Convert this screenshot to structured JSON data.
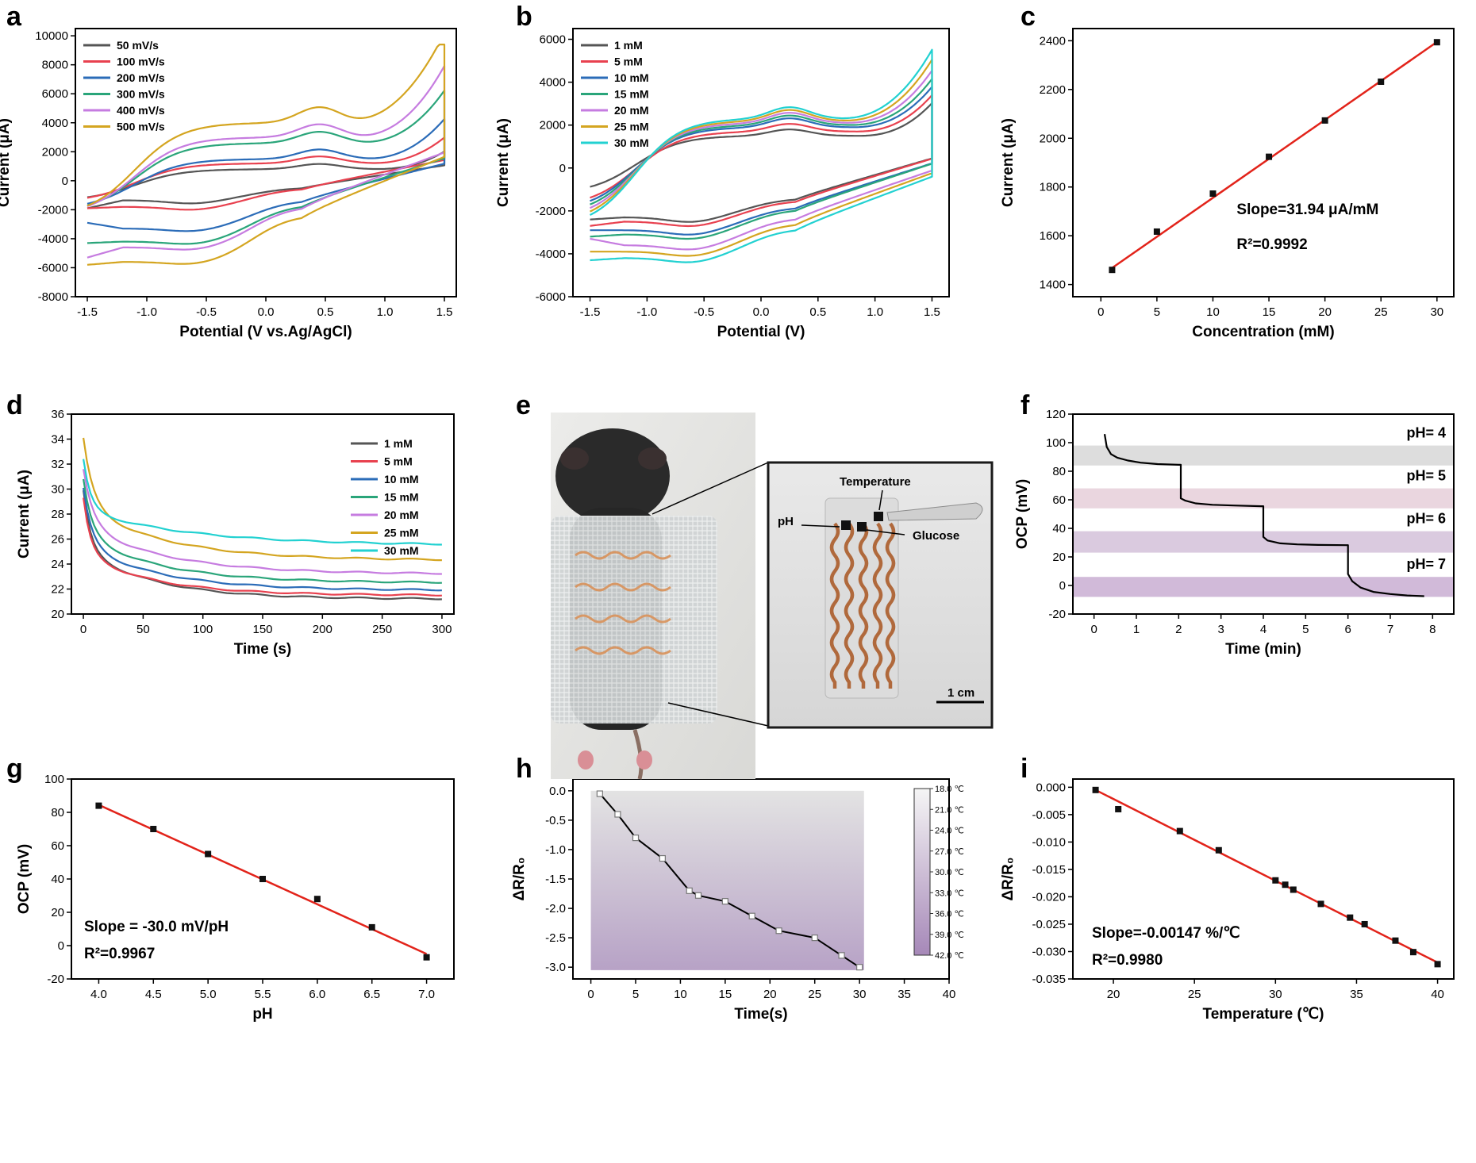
{
  "panel_labels": [
    "a",
    "b",
    "c",
    "d",
    "e",
    "f",
    "g",
    "h",
    "i"
  ],
  "photo": {
    "annotations": {
      "temperature": "Temperature",
      "ph": "pH",
      "glucose": "Glucose",
      "scale": "1 cm"
    }
  },
  "chart_data": [
    {
      "panel": "a",
      "type": "line",
      "xlabel": "Potential (V vs.Ag/AgCl)",
      "ylabel": "Current (μA)",
      "xlim": [
        -1.6,
        1.6
      ],
      "ylim": [
        -8000,
        10500
      ],
      "xticks": [
        -1.5,
        -1.0,
        -0.5,
        0.0,
        0.5,
        1.0,
        1.5
      ],
      "xtick_labels": [
        "-1.5",
        "-1.0",
        "-0.5",
        "0.0",
        "0.5",
        "1.0",
        "1.5"
      ],
      "yticks": [
        -8000,
        -6000,
        -4000,
        -2000,
        0,
        2000,
        4000,
        6000,
        8000,
        10000
      ],
      "ytick_labels": [
        "-8000",
        "-6000",
        "-4000",
        "-2000",
        "0",
        "2000",
        "4000",
        "6000",
        "8000",
        "10000"
      ],
      "legend_position": "top-left",
      "curve_model": "cv_a",
      "series": [
        {
          "name": "50 mV/s",
          "color": "#555555",
          "cv": {
            "oxStart": -1400,
            "oxA": 600,
            "oxPlat": 800,
            "oxEnd": 3600,
            "redMin": -1350,
            "redEnd": -1900,
            "redPeak": -1200,
            "redStep": 900,
            "x0": 1.25,
            "k": 4.5
          }
        },
        {
          "name": "100 mV/s",
          "color": "#e8414f",
          "cv": {
            "oxStart": -1500,
            "oxA": 800,
            "oxPlat": 1200,
            "oxEnd": 4600,
            "redMin": -1800,
            "redEnd": -1900,
            "redPeak": -1700,
            "redStep": 1300,
            "x0": 1.2,
            "k": 4.3
          }
        },
        {
          "name": "200 mV/s",
          "color": "#2b6cb8",
          "cv": {
            "oxStart": -2000,
            "oxA": 1100,
            "oxPlat": 1500,
            "oxEnd": 5900,
            "redMin": -3300,
            "redEnd": -2900,
            "redPeak": -3100,
            "redStep": 2000,
            "x0": 1.15,
            "k": 4.2
          }
        },
        {
          "name": "300 mV/s",
          "color": "#2aa57a",
          "cv": {
            "oxStart": -2300,
            "oxA": 1300,
            "oxPlat": 2600,
            "oxEnd": 7500,
            "redMin": -4200,
            "redEnd": -4300,
            "redPeak": -4100,
            "redStep": 2600,
            "x0": 1.1,
            "k": 4.0
          }
        },
        {
          "name": "400 mV/s",
          "color": "#c67ce0",
          "cv": {
            "oxStart": -2400,
            "oxA": 1500,
            "oxPlat": 3000,
            "oxEnd": 8700,
            "redMin": -4600,
            "redEnd": -5300,
            "redPeak": -4500,
            "redStep": 2900,
            "x0": 1.05,
            "k": 3.8
          }
        },
        {
          "name": "500 mV/s",
          "color": "#d4a520",
          "cv": {
            "oxStart": -2500,
            "oxA": 1800,
            "oxPlat": 4000,
            "oxEnd": 9400,
            "redMin": -5600,
            "redEnd": -5800,
            "redPeak": -5500,
            "redStep": 3300,
            "x0": 0.95,
            "k": 3.5
          }
        }
      ]
    },
    {
      "panel": "b",
      "type": "line",
      "xlabel": "Potential (V)",
      "ylabel": "Current (μA)",
      "xlim": [
        -1.65,
        1.65
      ],
      "ylim": [
        -6000,
        6500
      ],
      "xticks": [
        -1.5,
        -1.0,
        -0.5,
        0.0,
        0.5,
        1.0,
        1.5
      ],
      "xtick_labels": [
        "-1.5",
        "-1.0",
        "-0.5",
        "0.0",
        "0.5",
        "1.0",
        "1.5"
      ],
      "yticks": [
        -6000,
        -4000,
        -2000,
        0,
        2000,
        4000,
        6000
      ],
      "ytick_labels": [
        "-6000",
        "-4000",
        "-2000",
        "0",
        "2000",
        "4000",
        "6000"
      ],
      "legend_position": "top-left",
      "curve_model": "cv_b",
      "series": [
        {
          "name": "1 mM",
          "color": "#555555",
          "cv": {
            "oxStart": -1200,
            "oxA": 500,
            "oxPlat": 1500,
            "oxEnd": 4400,
            "redMin": -2300,
            "redEnd": -2400,
            "redPeak": -2100,
            "redStep": 900,
            "x0": 1.2,
            "k": 4.8
          }
        },
        {
          "name": "5 mM",
          "color": "#e8414f",
          "cv": {
            "oxStart": -1800,
            "oxA": 600,
            "oxPlat": 1700,
            "oxEnd": 4600,
            "redMin": -2500,
            "redEnd": -2700,
            "redPeak": -2400,
            "redStep": 1000,
            "x0": 1.17,
            "k": 4.7
          }
        },
        {
          "name": "10 mM",
          "color": "#2b6cb8",
          "cv": {
            "oxStart": -2000,
            "oxA": 700,
            "oxPlat": 1900,
            "oxEnd": 4800,
            "redMin": -2900,
            "redEnd": -2900,
            "redPeak": -2700,
            "redStep": 1100,
            "x0": 1.14,
            "k": 4.6
          }
        },
        {
          "name": "15 mM",
          "color": "#2aa57a",
          "cv": {
            "oxStart": -2200,
            "oxA": 750,
            "oxPlat": 2000,
            "oxEnd": 5000,
            "redMin": -3100,
            "redEnd": -3200,
            "redPeak": -2900,
            "redStep": 1200,
            "x0": 1.11,
            "k": 4.5
          }
        },
        {
          "name": "20 mM",
          "color": "#c67ce0",
          "cv": {
            "oxStart": -2400,
            "oxA": 800,
            "oxPlat": 2100,
            "oxEnd": 5200,
            "redMin": -3600,
            "redEnd": -3300,
            "redPeak": -3200,
            "redStep": 1300,
            "x0": 1.08,
            "k": 4.4
          }
        },
        {
          "name": "25 mM",
          "color": "#d4a520",
          "cv": {
            "oxStart": -2600,
            "oxA": 850,
            "oxPlat": 2200,
            "oxEnd": 5500,
            "redMin": -3900,
            "redEnd": -3900,
            "redPeak": -3400,
            "redStep": 1350,
            "x0": 1.05,
            "k": 4.3
          }
        },
        {
          "name": "30 mM",
          "color": "#22d1d1",
          "cv": {
            "oxStart": -2800,
            "oxA": 900,
            "oxPlat": 2300,
            "oxEnd": 5700,
            "redMin": -4200,
            "redEnd": -4300,
            "redPeak": -3600,
            "redStep": 1400,
            "x0": 1.02,
            "k": 4.2
          }
        }
      ]
    },
    {
      "panel": "c",
      "type": "scatter",
      "xlabel": "Concentration (mM)",
      "ylabel": "Current (μA)",
      "xlim": [
        -2.5,
        31.5
      ],
      "ylim": [
        1350,
        2450
      ],
      "xticks": [
        0,
        5,
        10,
        15,
        20,
        25,
        30
      ],
      "xtick_labels": [
        "0",
        "5",
        "10",
        "15",
        "20",
        "25",
        "30"
      ],
      "yticks": [
        1400,
        1600,
        1800,
        2000,
        2200,
        2400
      ],
      "ytick_labels": [
        "1400",
        "1600",
        "1800",
        "2000",
        "2200",
        "2400"
      ],
      "x": [
        1,
        5,
        10,
        15,
        20,
        25,
        30
      ],
      "y": [
        1460,
        1617,
        1773,
        1924,
        2073,
        2232,
        2394
      ],
      "fit": {
        "x": [
          1,
          30
        ],
        "y": [
          1468,
          2395
        ],
        "color": "#e2231a"
      },
      "annotations": [
        "Slope=31.94 μA/mM",
        "R²=0.9992"
      ]
    },
    {
      "panel": "d",
      "type": "line",
      "xlabel": "Time (s)",
      "ylabel": "Current (μA)",
      "xlim": [
        -10,
        310
      ],
      "ylim": [
        20,
        36
      ],
      "xticks": [
        0,
        50,
        100,
        150,
        200,
        250,
        300
      ],
      "xtick_labels": [
        "0",
        "50",
        "100",
        "150",
        "200",
        "250",
        "300"
      ],
      "yticks": [
        20,
        22,
        24,
        26,
        28,
        30,
        32,
        34,
        36
      ],
      "ytick_labels": [
        "20",
        "22",
        "24",
        "26",
        "28",
        "30",
        "32",
        "34",
        "36"
      ],
      "legend_position": "top-right",
      "curve_model": "amperometric_decay",
      "series": [
        {
          "name": "1 mM",
          "color": "#555555",
          "decay": {
            "start": 29.9,
            "end": 21.2,
            "a1": 4.8,
            "tau1": 6,
            "tau2": 60
          }
        },
        {
          "name": "5 mM",
          "color": "#e8414f",
          "decay": {
            "start": 29.3,
            "end": 21.5,
            "a1": 4.5,
            "tau1": 6,
            "tau2": 60
          }
        },
        {
          "name": "10 mM",
          "color": "#2b6cb8",
          "decay": {
            "start": 30.1,
            "end": 21.9,
            "a1": 4.6,
            "tau1": 7,
            "tau2": 65
          }
        },
        {
          "name": "15 mM",
          "color": "#2aa57a",
          "decay": {
            "start": 30.8,
            "end": 22.5,
            "a1": 4.5,
            "tau1": 7,
            "tau2": 65
          }
        },
        {
          "name": "20 mM",
          "color": "#c67ce0",
          "decay": {
            "start": 31.6,
            "end": 23.2,
            "a1": 4.5,
            "tau1": 8,
            "tau2": 70
          }
        },
        {
          "name": "25 mM",
          "color": "#d4a520",
          "decay": {
            "start": 34.1,
            "end": 24.3,
            "a1": 5.5,
            "tau1": 8,
            "tau2": 70
          }
        },
        {
          "name": "30 mM",
          "color": "#22d1d1",
          "decay": {
            "start": 32.4,
            "end": 25.5,
            "a1": 4.1,
            "tau1": 6,
            "tau2": 90
          }
        }
      ]
    },
    {
      "panel": "f",
      "type": "line",
      "xlabel": "Time (min)",
      "ylabel": "OCP (mV)",
      "xlim": [
        -0.5,
        8.5
      ],
      "ylim": [
        -20,
        120
      ],
      "xticks": [
        0,
        1,
        2,
        3,
        4,
        5,
        6,
        7,
        8
      ],
      "xtick_labels": [
        "0",
        "1",
        "2",
        "3",
        "4",
        "5",
        "6",
        "7",
        "8"
      ],
      "yticks": [
        -20,
        0,
        20,
        40,
        60,
        80,
        100,
        120
      ],
      "ytick_labels": [
        "-20",
        "0",
        "20",
        "40",
        "60",
        "80",
        "100",
        "120"
      ],
      "bands": [
        {
          "label": "pH= 4",
          "y0": 84,
          "y1": 98,
          "color": "#d9d9d9"
        },
        {
          "label": "pH= 5",
          "y0": 54,
          "y1": 68,
          "color": "#e8d2dc"
        },
        {
          "label": "pH= 6",
          "y0": 23,
          "y1": 38,
          "color": "#d6c4dc"
        },
        {
          "label": "pH= 7",
          "y0": -8,
          "y1": 6,
          "color": "#ccb2d5"
        }
      ],
      "series": [
        {
          "color": "#000000",
          "x": [
            0.25,
            0.3,
            0.4,
            0.55,
            0.8,
            1.1,
            1.5,
            2.0,
            2.05,
            2.05,
            2.15,
            2.4,
            2.8,
            3.3,
            3.95,
            4.0,
            4.0,
            4.1,
            4.4,
            4.8,
            5.3,
            5.95,
            6.0,
            6.0,
            6.1,
            6.3,
            6.6,
            7.0,
            7.4,
            7.8
          ],
          "y": [
            106,
            97,
            92,
            89.5,
            87.5,
            86,
            85,
            84.5,
            84.5,
            61,
            59.5,
            57.5,
            56.5,
            56,
            55.5,
            55.5,
            34,
            31.5,
            29.5,
            28.8,
            28.4,
            28.2,
            28.2,
            8,
            3,
            -1.5,
            -4.5,
            -6,
            -7,
            -7.5
          ]
        }
      ]
    },
    {
      "panel": "g",
      "type": "scatter",
      "xlabel": "pH",
      "ylabel": "OCP (mV)",
      "xlim": [
        3.75,
        7.25
      ],
      "ylim": [
        -20,
        100
      ],
      "xticks": [
        4.0,
        4.5,
        5.0,
        5.5,
        6.0,
        6.5,
        7.0
      ],
      "xtick_labels": [
        "4.0",
        "4.5",
        "5.0",
        "5.5",
        "6.0",
        "6.5",
        "7.0"
      ],
      "yticks": [
        -20,
        0,
        20,
        40,
        60,
        80,
        100
      ],
      "ytick_labels": [
        "-20",
        "0",
        "20",
        "40",
        "60",
        "80",
        "100"
      ],
      "x": [
        4.0,
        4.5,
        5.0,
        5.5,
        6.0,
        6.5,
        7.0
      ],
      "y": [
        84,
        70,
        55,
        40,
        28,
        11,
        -7
      ],
      "fit": {
        "x": [
          4.0,
          7.0
        ],
        "y": [
          84.5,
          -5
        ],
        "color": "#e2231a"
      },
      "annotations": [
        "Slope = -30.0 mV/pH",
        "R²=0.9967"
      ]
    },
    {
      "panel": "h",
      "type": "line",
      "xlabel": "Time(s)",
      "ylabel": "ΔR/R₀",
      "xlim": [
        -2,
        40
      ],
      "ylim": [
        -3.2,
        0.2
      ],
      "xticks": [
        0,
        5,
        10,
        15,
        20,
        25,
        30,
        35,
        40
      ],
      "xtick_labels": [
        "0",
        "5",
        "10",
        "15",
        "20",
        "25",
        "30",
        "35",
        "40"
      ],
      "yticks": [
        -3.0,
        -2.5,
        -2.0,
        -1.5,
        -1.0,
        -0.5,
        0.0
      ],
      "ytick_labels": [
        "-3.0",
        "-2.5",
        "-2.0",
        "-1.5",
        "-1.0",
        "-0.5",
        "0.0"
      ],
      "background_gradient": {
        "x": [
          0,
          30.5
        ],
        "y": [
          -3.05,
          0
        ],
        "top_color": "#e3e3e3",
        "bottom_color": "#b7a2c6"
      },
      "colorbar": {
        "labels": [
          "18.0 ℃",
          "21.0 ℃",
          "24.0 ℃",
          "27.0 ℃",
          "30.0 ℃",
          "33.0 ℃",
          "36.0 ℃",
          "39.0 ℃",
          "42.0 ℃"
        ],
        "top_color": "#f5f5f5",
        "bottom_color": "#a688b8"
      },
      "series": [
        {
          "color": "#000000",
          "x": [
            1,
            3,
            5,
            8,
            11,
            12,
            15,
            18,
            21,
            25,
            28,
            30
          ],
          "y": [
            -0.05,
            -0.4,
            -0.8,
            -1.15,
            -1.7,
            -1.78,
            -1.88,
            -2.13,
            -2.38,
            -2.5,
            -2.8,
            -3.0
          ]
        }
      ]
    },
    {
      "panel": "i",
      "type": "scatter",
      "xlabel": "Temperature (℃)",
      "ylabel": "ΔR/R₀",
      "xlim": [
        17.5,
        41
      ],
      "ylim": [
        -0.035,
        0.0015
      ],
      "xticks": [
        20,
        25,
        30,
        35,
        40
      ],
      "xtick_labels": [
        "20",
        "25",
        "30",
        "35",
        "40"
      ],
      "yticks": [
        -0.035,
        -0.03,
        -0.025,
        -0.02,
        -0.015,
        -0.01,
        -0.005,
        0.0
      ],
      "ytick_labels": [
        "-0.035",
        "-0.030",
        "-0.025",
        "-0.020",
        "-0.015",
        "-0.010",
        "-0.005",
        "0.000"
      ],
      "x": [
        18.9,
        20.3,
        24.1,
        26.5,
        30.0,
        30.6,
        31.1,
        32.8,
        34.6,
        35.5,
        37.4,
        38.5,
        40.0
      ],
      "y": [
        -0.0005,
        -0.004,
        -0.008,
        -0.0115,
        -0.017,
        -0.0178,
        -0.0187,
        -0.0213,
        -0.0238,
        -0.025,
        -0.028,
        -0.0301,
        -0.0323
      ],
      "fit": {
        "x": [
          18.9,
          40.0
        ],
        "y": [
          -0.0005,
          -0.032
        ],
        "color": "#e2231a"
      },
      "annotations": [
        "Slope=-0.00147 %/℃",
        "R²=0.9980"
      ]
    }
  ]
}
